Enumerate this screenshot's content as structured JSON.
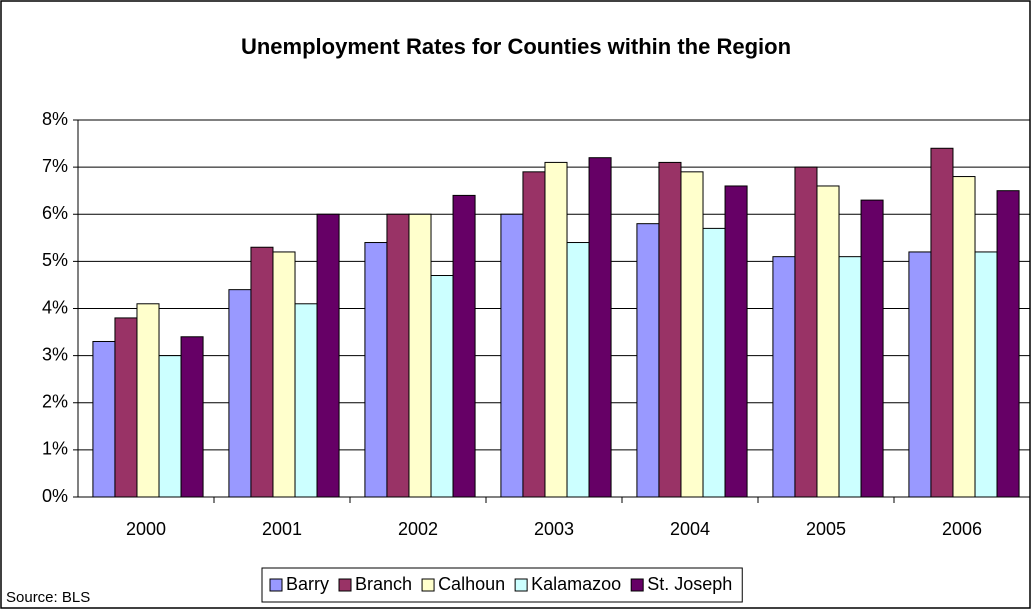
{
  "chart_data": {
    "type": "bar",
    "title": "Unemployment Rates for Counties within the Region",
    "source": "Source: BLS",
    "categories": [
      "2000",
      "2001",
      "2002",
      "2003",
      "2004",
      "2005",
      "2006"
    ],
    "series": [
      {
        "name": "Barry",
        "color": "#9999ff",
        "values": [
          3.3,
          4.4,
          5.4,
          6.0,
          5.8,
          5.1,
          5.2
        ]
      },
      {
        "name": "Branch",
        "color": "#993366",
        "values": [
          3.8,
          5.3,
          6.0,
          6.9,
          7.1,
          7.0,
          7.4
        ]
      },
      {
        "name": "Calhoun",
        "color": "#ffffcc",
        "values": [
          4.1,
          5.2,
          6.0,
          7.1,
          6.9,
          6.6,
          6.8
        ]
      },
      {
        "name": "Kalamazoo",
        "color": "#ccffff",
        "values": [
          3.0,
          4.1,
          4.7,
          5.4,
          5.7,
          5.1,
          5.2
        ]
      },
      {
        "name": "St. Joseph",
        "color": "#660066",
        "values": [
          3.4,
          6.0,
          6.4,
          7.2,
          6.6,
          6.3,
          6.5
        ]
      }
    ],
    "ylim": [
      0,
      8
    ],
    "yticks": [
      {
        "value": 0,
        "label": "0%"
      },
      {
        "value": 1,
        "label": "1%"
      },
      {
        "value": 2,
        "label": "2%"
      },
      {
        "value": 3,
        "label": "3%"
      },
      {
        "value": 4,
        "label": "4%"
      },
      {
        "value": 5,
        "label": "5%"
      },
      {
        "value": 6,
        "label": "6%"
      },
      {
        "value": 7,
        "label": "7%"
      },
      {
        "value": 8,
        "label": "8%"
      }
    ],
    "grid": true,
    "legend": "bottom"
  }
}
